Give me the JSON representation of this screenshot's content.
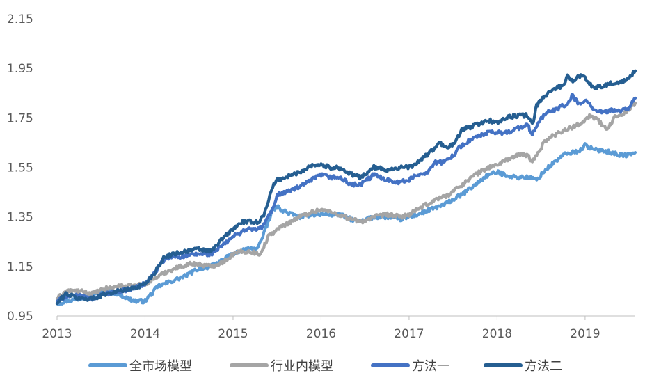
{
  "chart_data": {
    "type": "line",
    "title": "",
    "xlabel": "",
    "ylabel": "",
    "x_ticks": [
      "2013",
      "2014",
      "2015",
      "2016",
      "2017",
      "2018",
      "2019"
    ],
    "y_ticks": [
      "0.95",
      "1.15",
      "1.35",
      "1.55",
      "1.75",
      "1.95",
      "2.15"
    ],
    "xlim": [
      2013.0,
      2019.57
    ],
    "ylim": [
      0.95,
      2.15
    ],
    "grid": false,
    "legend_position": "bottom",
    "series": [
      {
        "name": "全市场模型",
        "color": "#5B9BD5",
        "x": [
          2013.0,
          2013.1,
          2013.25,
          2013.4,
          2013.55,
          2013.7,
          2013.8,
          2013.9,
          2014.0,
          2014.05,
          2014.15,
          2014.3,
          2014.45,
          2014.6,
          2014.75,
          2014.9,
          2015.0,
          2015.15,
          2015.25,
          2015.3,
          2015.35,
          2015.45,
          2015.5,
          2015.6,
          2015.75,
          2015.9,
          2016.0,
          2016.1,
          2016.2,
          2016.35,
          2016.45,
          2016.6,
          2016.75,
          2016.9,
          2017.0,
          2017.1,
          2017.25,
          2017.4,
          2017.5,
          2017.6,
          2017.75,
          2017.9,
          2018.0,
          2018.1,
          2018.2,
          2018.35,
          2018.45,
          2018.55,
          2018.65,
          2018.75,
          2018.85,
          2018.95,
          2019.0,
          2019.1,
          2019.2,
          2019.3,
          2019.4,
          2019.5,
          2019.57
        ],
        "values": [
          1.0,
          1.01,
          1.02,
          1.04,
          1.05,
          1.04,
          1.02,
          1.01,
          1.01,
          1.03,
          1.07,
          1.09,
          1.11,
          1.14,
          1.15,
          1.18,
          1.2,
          1.22,
          1.22,
          1.24,
          1.28,
          1.38,
          1.39,
          1.37,
          1.35,
          1.36,
          1.36,
          1.36,
          1.36,
          1.34,
          1.33,
          1.35,
          1.35,
          1.34,
          1.35,
          1.36,
          1.38,
          1.4,
          1.42,
          1.44,
          1.48,
          1.52,
          1.53,
          1.52,
          1.51,
          1.51,
          1.5,
          1.54,
          1.57,
          1.6,
          1.61,
          1.62,
          1.64,
          1.62,
          1.62,
          1.61,
          1.6,
          1.6,
          1.61
        ]
      },
      {
        "name": "行业内模型",
        "color": "#A5A5A5",
        "x": [
          2013.0,
          2013.1,
          2013.25,
          2013.4,
          2013.55,
          2013.7,
          2013.85,
          2014.0,
          2014.1,
          2014.25,
          2014.4,
          2014.5,
          2014.6,
          2014.75,
          2014.9,
          2015.0,
          2015.1,
          2015.2,
          2015.3,
          2015.35,
          2015.4,
          2015.5,
          2015.6,
          2015.75,
          2015.9,
          2016.0,
          2016.1,
          2016.2,
          2016.35,
          2016.45,
          2016.6,
          2016.75,
          2016.9,
          2017.0,
          2017.1,
          2017.2,
          2017.3,
          2017.45,
          2017.6,
          2017.75,
          2017.9,
          2018.0,
          2018.1,
          2018.25,
          2018.35,
          2018.4,
          2018.45,
          2018.55,
          2018.65,
          2018.75,
          2018.85,
          2018.9,
          2019.0,
          2019.05,
          2019.1,
          2019.15,
          2019.2,
          2019.25,
          2019.35,
          2019.45,
          2019.57
        ],
        "values": [
          1.02,
          1.05,
          1.05,
          1.04,
          1.06,
          1.07,
          1.07,
          1.08,
          1.1,
          1.13,
          1.15,
          1.16,
          1.16,
          1.15,
          1.17,
          1.2,
          1.21,
          1.21,
          1.2,
          1.23,
          1.27,
          1.3,
          1.32,
          1.35,
          1.37,
          1.38,
          1.37,
          1.36,
          1.34,
          1.33,
          1.35,
          1.36,
          1.35,
          1.36,
          1.38,
          1.4,
          1.42,
          1.44,
          1.48,
          1.52,
          1.55,
          1.56,
          1.58,
          1.6,
          1.6,
          1.57,
          1.6,
          1.66,
          1.68,
          1.7,
          1.71,
          1.72,
          1.74,
          1.76,
          1.75,
          1.74,
          1.72,
          1.7,
          1.76,
          1.77,
          1.81
        ]
      },
      {
        "name": "方法一",
        "color": "#4472C4",
        "x": [
          2013.0,
          2013.1,
          2013.25,
          2013.4,
          2013.55,
          2013.7,
          2013.85,
          2014.0,
          2014.1,
          2014.2,
          2014.3,
          2014.45,
          2014.6,
          2014.75,
          2014.9,
          2015.0,
          2015.15,
          2015.25,
          2015.3,
          2015.35,
          2015.45,
          2015.5,
          2015.6,
          2015.75,
          2015.9,
          2016.0,
          2016.1,
          2016.2,
          2016.35,
          2016.45,
          2016.6,
          2016.75,
          2016.9,
          2017.0,
          2017.1,
          2017.2,
          2017.3,
          2017.4,
          2017.5,
          2017.6,
          2017.75,
          2017.9,
          2018.0,
          2018.1,
          2018.25,
          2018.35,
          2018.4,
          2018.45,
          2018.55,
          2018.65,
          2018.75,
          2018.8,
          2018.85,
          2018.95,
          2019.0,
          2019.05,
          2019.1,
          2019.2,
          2019.3,
          2019.4,
          2019.5,
          2019.57
        ],
        "values": [
          1.01,
          1.03,
          1.03,
          1.02,
          1.04,
          1.05,
          1.06,
          1.08,
          1.12,
          1.17,
          1.19,
          1.19,
          1.2,
          1.2,
          1.24,
          1.27,
          1.3,
          1.3,
          1.3,
          1.32,
          1.38,
          1.44,
          1.45,
          1.47,
          1.5,
          1.52,
          1.51,
          1.51,
          1.48,
          1.48,
          1.52,
          1.5,
          1.49,
          1.5,
          1.52,
          1.53,
          1.57,
          1.57,
          1.6,
          1.64,
          1.67,
          1.69,
          1.69,
          1.69,
          1.71,
          1.72,
          1.68,
          1.72,
          1.77,
          1.78,
          1.8,
          1.8,
          1.84,
          1.8,
          1.82,
          1.81,
          1.78,
          1.77,
          1.78,
          1.78,
          1.79,
          1.83
        ]
      },
      {
        "name": "方法二",
        "color": "#255E91",
        "x": [
          2013.0,
          2013.1,
          2013.25,
          2013.4,
          2013.55,
          2013.7,
          2013.85,
          2014.0,
          2014.1,
          2014.2,
          2014.3,
          2014.45,
          2014.6,
          2014.75,
          2014.9,
          2015.0,
          2015.1,
          2015.25,
          2015.3,
          2015.35,
          2015.45,
          2015.5,
          2015.6,
          2015.75,
          2015.9,
          2016.0,
          2016.1,
          2016.2,
          2016.35,
          2016.45,
          2016.6,
          2016.75,
          2016.9,
          2017.0,
          2017.1,
          2017.2,
          2017.3,
          2017.35,
          2017.4,
          2017.5,
          2017.6,
          2017.75,
          2017.9,
          2018.0,
          2018.1,
          2018.25,
          2018.35,
          2018.4,
          2018.45,
          2018.55,
          2018.65,
          2018.75,
          2018.8,
          2018.85,
          2018.95,
          2019.0,
          2019.05,
          2019.1,
          2019.2,
          2019.3,
          2019.4,
          2019.5,
          2019.57
        ],
        "values": [
          1.0,
          1.04,
          1.02,
          1.02,
          1.04,
          1.05,
          1.06,
          1.08,
          1.12,
          1.18,
          1.2,
          1.21,
          1.22,
          1.21,
          1.27,
          1.3,
          1.33,
          1.33,
          1.33,
          1.36,
          1.47,
          1.5,
          1.51,
          1.53,
          1.56,
          1.56,
          1.55,
          1.55,
          1.52,
          1.51,
          1.55,
          1.54,
          1.55,
          1.55,
          1.57,
          1.6,
          1.63,
          1.65,
          1.63,
          1.64,
          1.7,
          1.72,
          1.74,
          1.73,
          1.75,
          1.76,
          1.76,
          1.72,
          1.8,
          1.84,
          1.87,
          1.88,
          1.92,
          1.9,
          1.92,
          1.91,
          1.89,
          1.87,
          1.88,
          1.89,
          1.89,
          1.91,
          1.94
        ]
      }
    ]
  }
}
